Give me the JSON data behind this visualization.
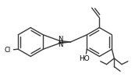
{
  "bg_color": "#ffffff",
  "line_color": "#3a3a3a",
  "line_width": 1.0,
  "text_color": "#000000",
  "figsize": [
    1.73,
    1.08
  ],
  "dpi": 100,
  "xlim": [
    0,
    173
  ],
  "ylim": [
    0,
    108
  ]
}
